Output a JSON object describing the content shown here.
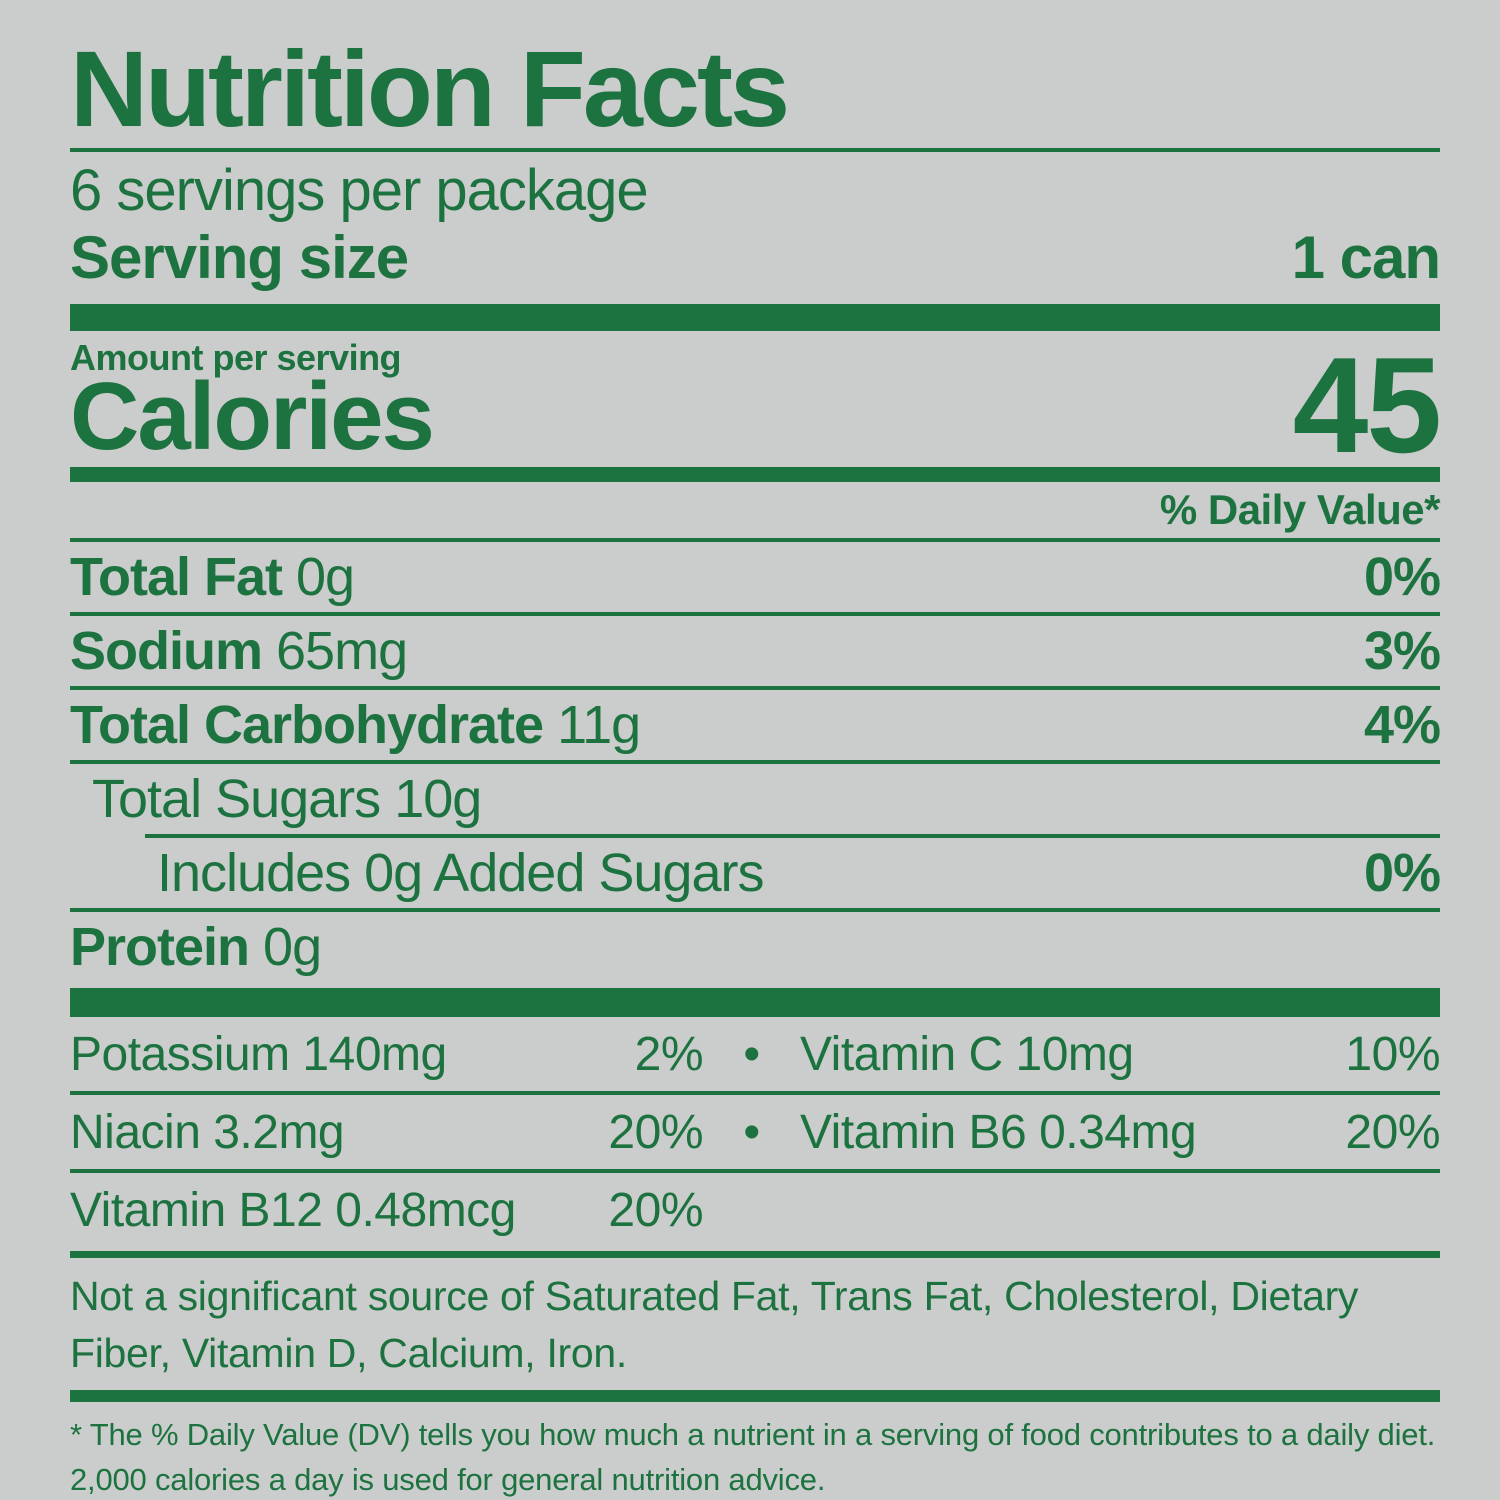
{
  "label": {
    "title": "Nutrition Facts",
    "servings_per_package": "6 servings per package",
    "serving_size": {
      "label": "Serving size",
      "value": "1 can"
    },
    "amount_per_serving": "Amount per serving",
    "calories": {
      "label": "Calories",
      "value": "45"
    },
    "daily_value_header": "% Daily Value*",
    "nutrients": {
      "total_fat": {
        "name": "Total Fat",
        "amount": "0g",
        "dv": "0%"
      },
      "sodium": {
        "name": "Sodium",
        "amount": "65mg",
        "dv": "3%"
      },
      "total_carbohydrate": {
        "name": "Total Carbohydrate",
        "amount": "11g",
        "dv": "4%"
      },
      "total_sugars": {
        "name": "Total Sugars",
        "amount": "10g"
      },
      "added_sugars": {
        "name": "Includes 0g Added Sugars",
        "dv": "0%"
      },
      "protein": {
        "name": "Protein",
        "amount": "0g"
      }
    },
    "micronutrients": [
      {
        "name": "Potassium 140mg",
        "dv": "2%"
      },
      {
        "name": "Vitamin C 10mg",
        "dv": "10%"
      },
      {
        "name": "Niacin 3.2mg",
        "dv": "20%"
      },
      {
        "name": "Vitamin B6 0.34mg",
        "dv": "20%"
      },
      {
        "name": "Vitamin B12 0.48mcg",
        "dv": "20%"
      }
    ],
    "separator_bullet": "•",
    "not_significant_note": "Not a significant source of Saturated Fat, Trans Fat, Cholesterol, Dietary Fiber, Vitamin D, Calcium, Iron.",
    "footnote": "* The % Daily Value (DV) tells you how much a nutrient in a serving of food contributes to a daily diet. 2,000 calories a day is used for general nutrition advice.",
    "colors": {
      "text_green": "#1d7340",
      "background_gray": "#cbcccc"
    }
  }
}
